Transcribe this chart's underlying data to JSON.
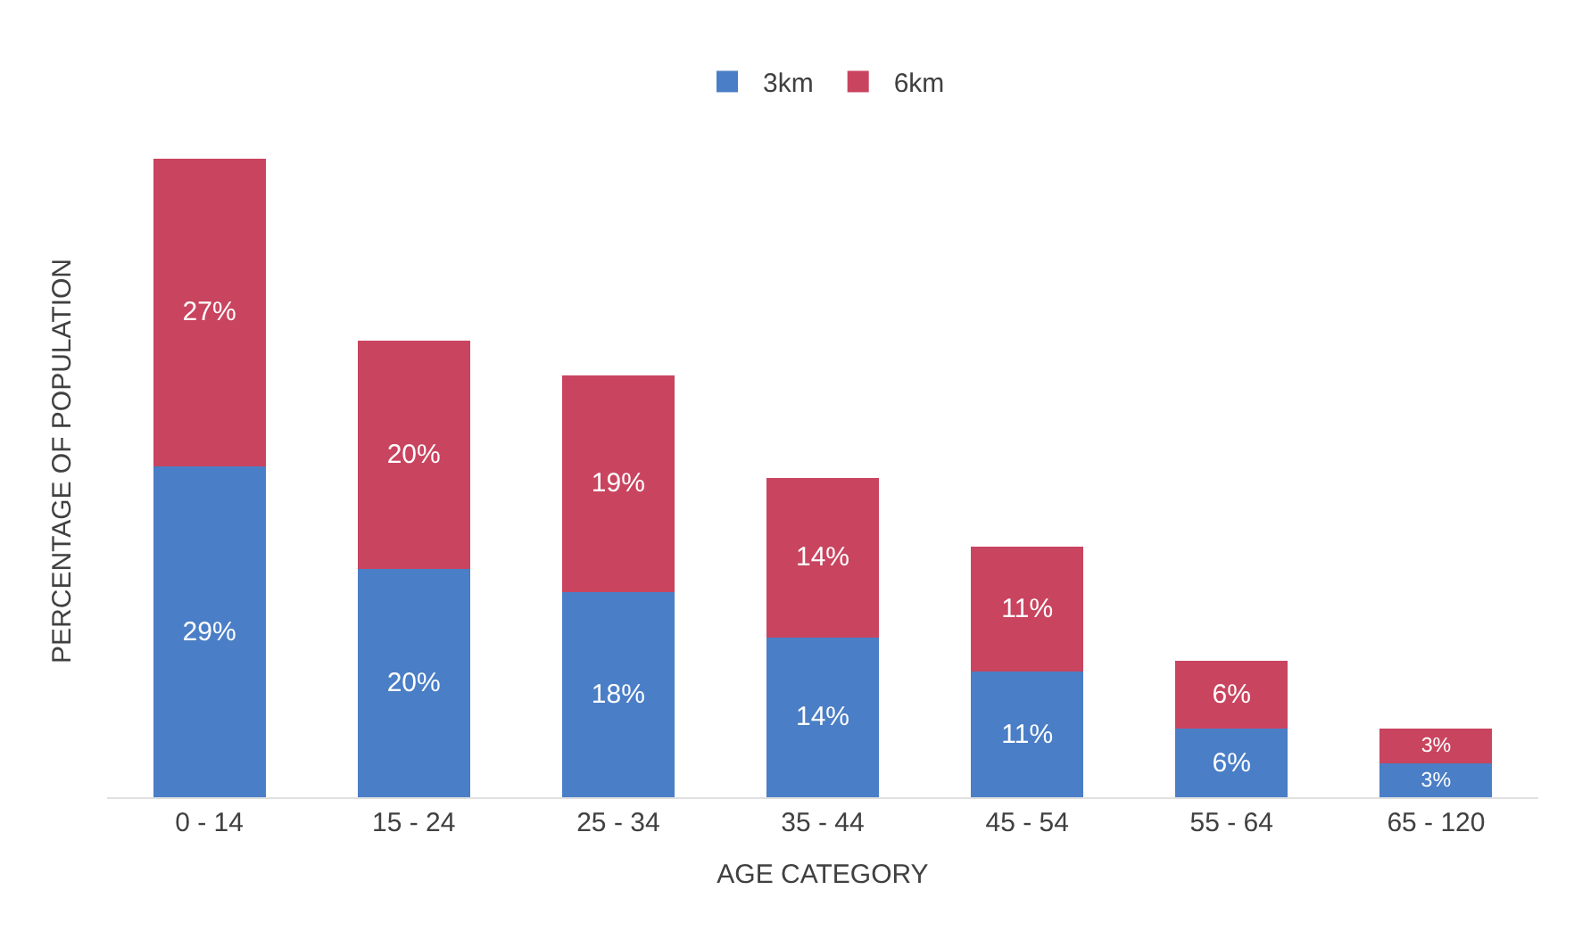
{
  "chart_data": {
    "type": "bar",
    "stacked": true,
    "xlabel": "AGE CATEGORY",
    "ylabel": "PERCENTAGE OF POPULATION",
    "categories": [
      "0 - 14",
      "15 - 24",
      "25 - 34",
      "35 - 44",
      "45 - 54",
      "55 - 64",
      "65 - 120"
    ],
    "series": [
      {
        "name": "3km",
        "color": "#4a7ec6",
        "values": [
          29,
          20,
          18,
          14,
          11,
          6,
          3
        ],
        "value_labels": [
          "29%",
          "20%",
          "18%",
          "14%",
          "11%",
          "6%",
          "3%"
        ]
      },
      {
        "name": "6km",
        "color": "#c9445f",
        "values": [
          27,
          20,
          19,
          14,
          11,
          6,
          3
        ],
        "value_labels": [
          "27%",
          "20%",
          "19%",
          "14%",
          "11%",
          "6%",
          "3%"
        ]
      }
    ],
    "legend": "top"
  }
}
